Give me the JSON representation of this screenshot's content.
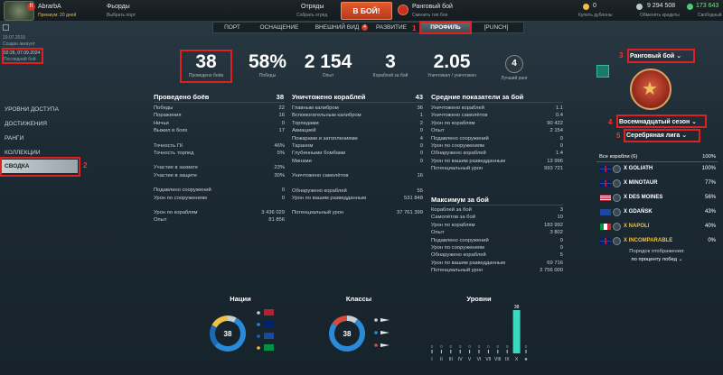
{
  "topbar": {
    "player_name": "AbrarbA",
    "player_sub": "Премиум: 20 дней",
    "logo_badge": "!!",
    "fleets_label": "Фьорды",
    "fleets_sub": "Выбрать порт",
    "squads_label": "Отряды",
    "squads_sub": "Собрать отряд",
    "battle_button": "В БОЙ!",
    "mode_label": "Ранговый бой",
    "mode_sub": "Сменить тип боя",
    "gold": "0",
    "gold_sub": "Купить дублоны",
    "credits": "9 294 508",
    "credits_sub": "Обменять кредиты",
    "xp": "173 643",
    "xp_sub": "Свободный"
  },
  "nav": {
    "tabs": [
      {
        "label": "ПОРТ"
      },
      {
        "label": "ОСНАЩЕНИЕ"
      },
      {
        "label": "ВНЕШНИЙ ВИД",
        "badge": "4"
      },
      {
        "label": "РАЗВИТИЕ"
      },
      {
        "label": "ПРОФИЛЬ",
        "active": true
      },
      {
        "label": "[PUNCH]"
      }
    ]
  },
  "left_meta": {
    "date_created": "19.07.2015",
    "created_label": "Создан аккаунт",
    "last_battle": "02:26, 07.09.2024",
    "last_battle_label": "Последний бой"
  },
  "sidebar": {
    "items": [
      {
        "label": "УРОВНИ ДОСТУПА"
      },
      {
        "label": "ДОСТИЖЕНИЯ"
      },
      {
        "label": "РАНГИ"
      },
      {
        "label": "КОЛЛЕКЦИИ"
      },
      {
        "label": "СВОДКА",
        "active": true
      }
    ]
  },
  "annotations": [
    "1",
    "2",
    "3",
    "4",
    "5"
  ],
  "summary": {
    "battles": {
      "value": "38",
      "label": "Проведено боёв"
    },
    "wins": {
      "value": "58%",
      "label": "Победы"
    },
    "xp": {
      "value": "2 154",
      "label": "Опыт"
    },
    "kills": {
      "value": "3",
      "label": "Кораблей за бой"
    },
    "kd": {
      "value": "2.05",
      "label": "Уничтожил / уничтожен"
    },
    "best_rank": {
      "value": "4",
      "label": "Лучший ранг"
    }
  },
  "col1": {
    "title": "Проведено боёв",
    "title_val": "38",
    "rows": [
      {
        "label": "Победы",
        "value": "22"
      },
      {
        "label": "Поражения",
        "value": "16"
      },
      {
        "label": "Ничьи",
        "value": "0"
      },
      {
        "label": "Выжил в боях",
        "value": "17"
      },
      {
        "label": "Точность ГК",
        "value": "46%"
      },
      {
        "label": "Точность торпед",
        "value": "5%"
      },
      {
        "label": "Участие в захвате",
        "value": "23%"
      },
      {
        "label": "Участие в защите",
        "value": "30%"
      },
      {
        "label": "Подавлено сооружений",
        "value": "0"
      },
      {
        "label": "Урон по сооружениям",
        "value": "0"
      },
      {
        "label": "Урон по кораблям",
        "value": "3 436 029"
      },
      {
        "label": "Опыт",
        "value": "81 856"
      }
    ]
  },
  "col2": {
    "title": "Уничтожено кораблей",
    "title_val": "43",
    "rows": [
      {
        "label": "Главным калибром",
        "value": "36"
      },
      {
        "label": "Вспомогательным калибром",
        "value": "1"
      },
      {
        "label": "Торпедами",
        "value": "2"
      },
      {
        "label": "Авиацией",
        "value": "0"
      },
      {
        "label": "Пожарами и затоплениями",
        "value": "4"
      },
      {
        "label": "Тараном",
        "value": "0"
      },
      {
        "label": "Глубинными бомбами",
        "value": "0"
      },
      {
        "label": "Минами",
        "value": "0"
      },
      {
        "label": "Уничтожено самолётов",
        "value": "16"
      },
      {
        "label": "Обнаружено кораблей",
        "value": "55"
      },
      {
        "label": "Урон по вашим разведданным",
        "value": "531 848"
      },
      {
        "label": "Потенциальный урон",
        "value": "37 761 399"
      }
    ]
  },
  "col3": {
    "title": "Средние показатели за бой",
    "rows": [
      {
        "label": "Уничтожено кораблей",
        "value": "1.1"
      },
      {
        "label": "Уничтожено самолётов",
        "value": "0.4"
      },
      {
        "label": "Урон по кораблям",
        "value": "90 422"
      },
      {
        "label": "Опыт",
        "value": "2 154"
      },
      {
        "label": "Подавлено сооружений",
        "value": "0"
      },
      {
        "label": "Урон по сооружениям",
        "value": "0"
      },
      {
        "label": "Обнаружено кораблей",
        "value": "1.4"
      },
      {
        "label": "Урон по вашим разведданным",
        "value": "13 996"
      },
      {
        "label": "Потенциальный урон",
        "value": "993 721"
      }
    ]
  },
  "col4": {
    "title": "Максимум за бой",
    "rows": [
      {
        "label": "Кораблей за бой",
        "value": "3"
      },
      {
        "label": "Самолётов за бой",
        "value": "10"
      },
      {
        "label": "Урон по кораблям",
        "value": "183 992"
      },
      {
        "label": "Опыт",
        "value": "3 802"
      },
      {
        "label": "Подавлено сооружений",
        "value": "0"
      },
      {
        "label": "Урон по сооружениям",
        "value": "0"
      },
      {
        "label": "Обнаружено кораблей",
        "value": "5"
      },
      {
        "label": "Урон по вашим разведданным",
        "value": "69 716"
      },
      {
        "label": "Потенциальный урон",
        "value": "2 756 000"
      }
    ]
  },
  "right": {
    "mode_dropdown": "Ранговый бой",
    "season_dropdown": "Восемнадцатый сезон",
    "league_dropdown": "Серебряная лига",
    "ships_header": "Все корабли (6)",
    "ships_header_val": "100%",
    "ships": [
      {
        "name": "X GOLIATH",
        "pct": "100%",
        "flag": "uk",
        "color": "#ffffff"
      },
      {
        "name": "X MINOTAUR",
        "pct": "77%",
        "flag": "uk",
        "color": "#ffffff"
      },
      {
        "name": "X DES MOINES",
        "pct": "56%",
        "flag": "us",
        "color": "#ffffff"
      },
      {
        "name": "X GDAŃSK",
        "pct": "43%",
        "flag": "eu",
        "color": "#ffffff"
      },
      {
        "name": "X NAPOLI",
        "pct": "40%",
        "flag": "it",
        "color": "#f0c040"
      },
      {
        "name": "X INCOMPARABLE",
        "pct": "0%",
        "flag": "uk",
        "color": "#f0c040"
      }
    ],
    "sort_label": "Порядок отображения:",
    "sort_value": "по проценту побед"
  },
  "bottom": {
    "nations_title": "Нации",
    "nations_value": "38",
    "classes_title": "Классы",
    "classes_value": "38",
    "levels_title": "Уровни"
  },
  "chart_data": [
    {
      "type": "pie",
      "title": "Нации",
      "center_label": "38",
      "categories": [
        "us",
        "uk",
        "it",
        "eu"
      ],
      "values": [
        8,
        55,
        20,
        17
      ]
    },
    {
      "type": "pie",
      "title": "Классы",
      "center_label": "38",
      "categories": [
        "destroyer",
        "cruiser",
        "battleship"
      ],
      "values": [
        10,
        75,
        15
      ]
    },
    {
      "type": "bar",
      "title": "Уровни",
      "categories": [
        "I",
        "II",
        "III",
        "IV",
        "V",
        "VI",
        "VII",
        "VIII",
        "IX",
        "X",
        "★"
      ],
      "values": [
        0,
        0,
        0,
        0,
        0,
        0,
        0,
        0,
        0,
        38,
        0
      ],
      "ylim": [
        0,
        38
      ]
    }
  ],
  "colors": {
    "accent_blue": "#2a8ad8",
    "accent_teal": "#3cd8c0",
    "red_mark": "#e02020"
  }
}
